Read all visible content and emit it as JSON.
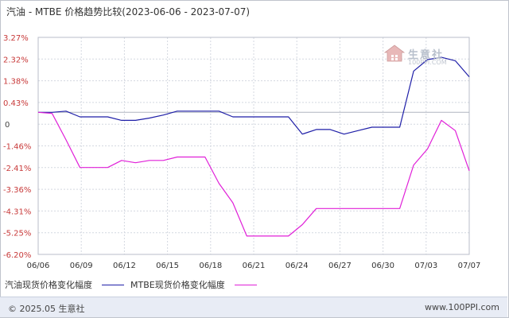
{
  "title": "汽油 - MTBE 价格趋势比较(2023-06-06 - 2023-07-07)",
  "footer": {
    "copyright": "© 2025.05 生意社",
    "site": "www.100PPI.com"
  },
  "watermark": {
    "text": "生意社",
    "sub": "100PPI.COM",
    "icon": "house-logo-icon"
  },
  "chart_data": {
    "type": "line",
    "title": "汽油 - MTBE 价格趋势比较(2023-06-06 - 2023-07-07)",
    "xlabel": "",
    "ylabel": "",
    "x_ticks": [
      "06/06",
      "06/09",
      "06/12",
      "06/15",
      "06/18",
      "06/21",
      "06/24",
      "06/27",
      "06/30",
      "07/03",
      "07/07"
    ],
    "y_ticks": [
      "3.27%",
      "2.32%",
      "1.38%",
      "0.43%",
      "0",
      "-1.46%",
      "-2.41%",
      "-3.36%",
      "-4.31%",
      "-5.25%",
      "-6.20%"
    ],
    "ylim": [
      -6.2,
      3.27
    ],
    "xlim": [
      0,
      31
    ],
    "grid": true,
    "legend_position": "bottom-left",
    "series": [
      {
        "name": "汽油现货价格变化幅度",
        "color": "#1f1fa8",
        "points": [
          [
            0,
            0
          ],
          [
            1,
            0
          ],
          [
            2,
            0.05
          ],
          [
            3,
            -0.2
          ],
          [
            4,
            -0.2
          ],
          [
            5,
            -0.2
          ],
          [
            6,
            -0.35
          ],
          [
            7,
            -0.35
          ],
          [
            8,
            -0.25
          ],
          [
            9,
            -0.12
          ],
          [
            10,
            0.05
          ],
          [
            11,
            0.05
          ],
          [
            12,
            0.05
          ],
          [
            13,
            0.05
          ],
          [
            14,
            -0.2
          ],
          [
            15,
            -0.2
          ],
          [
            16,
            -0.2
          ],
          [
            17,
            -0.2
          ],
          [
            18,
            -0.2
          ],
          [
            19,
            -0.95
          ],
          [
            20,
            -0.75
          ],
          [
            21,
            -0.75
          ],
          [
            22,
            -0.95
          ],
          [
            23,
            -0.8
          ],
          [
            24,
            -0.65
          ],
          [
            25,
            -0.65
          ],
          [
            26,
            -0.65
          ],
          [
            27,
            1.8
          ],
          [
            28,
            2.3
          ],
          [
            29,
            2.4
          ],
          [
            30,
            2.25
          ],
          [
            31,
            1.55
          ]
        ]
      },
      {
        "name": "MTBE现货价格变化幅度",
        "color": "#e020d8",
        "points": [
          [
            0,
            0
          ],
          [
            1,
            -0.05
          ],
          [
            2,
            -1.2
          ],
          [
            3,
            -2.41
          ],
          [
            4,
            -2.41
          ],
          [
            5,
            -2.41
          ],
          [
            6,
            -2.1
          ],
          [
            7,
            -2.2
          ],
          [
            8,
            -2.1
          ],
          [
            9,
            -2.1
          ],
          [
            10,
            -1.95
          ],
          [
            11,
            -1.95
          ],
          [
            12,
            -1.95
          ],
          [
            13,
            -3.1
          ],
          [
            14,
            -3.95
          ],
          [
            15,
            -5.4
          ],
          [
            16,
            -5.4
          ],
          [
            17,
            -5.4
          ],
          [
            18,
            -5.4
          ],
          [
            19,
            -4.9
          ],
          [
            20,
            -4.2
          ],
          [
            21,
            -4.2
          ],
          [
            22,
            -4.2
          ],
          [
            23,
            -4.2
          ],
          [
            24,
            -4.2
          ],
          [
            25,
            -4.2
          ],
          [
            26,
            -4.2
          ],
          [
            27,
            -2.3
          ],
          [
            28,
            -1.6
          ],
          [
            29,
            -0.35
          ],
          [
            30,
            -0.8
          ],
          [
            31,
            -2.55
          ]
        ]
      }
    ]
  }
}
